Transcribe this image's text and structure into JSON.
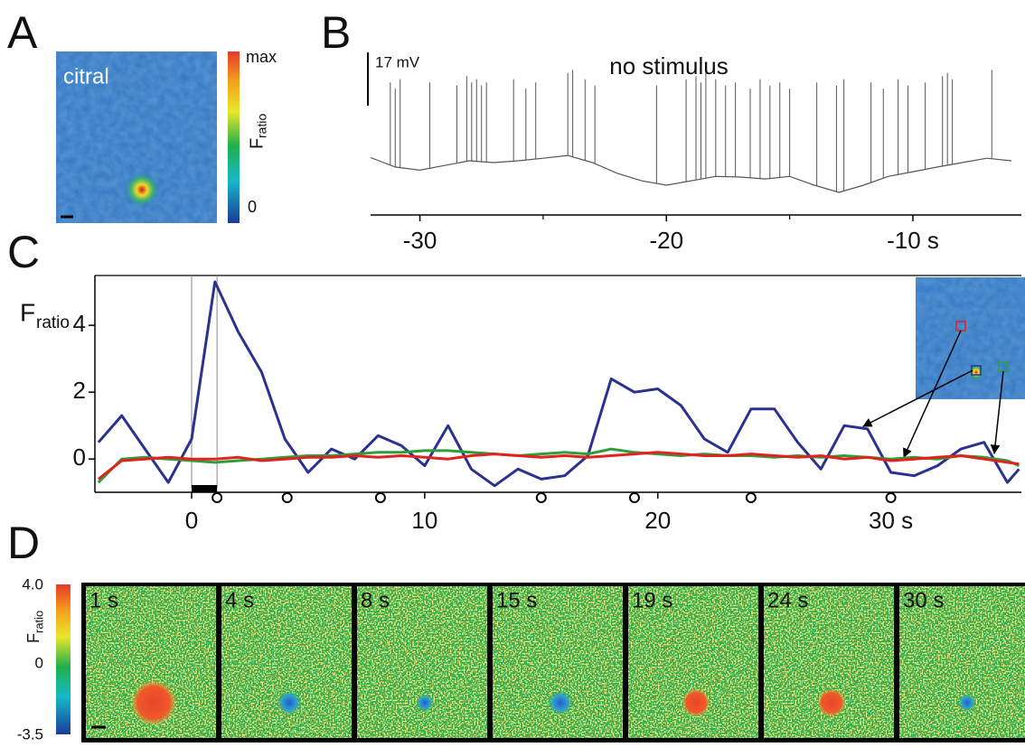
{
  "panel_labels": [
    "A",
    "B",
    "C",
    "D"
  ],
  "panel_a": {
    "image_label": "citral",
    "colorbar_top": "max",
    "colorbar_bottom": "0",
    "colorbar_title": "F",
    "colorbar_title_sub": "ratio"
  },
  "chart_data": [
    {
      "type": "trace",
      "title": "no stimulus",
      "scalebar": {
        "value": 17,
        "label": "17 mV"
      },
      "color": "#555555",
      "xlim": [
        -32,
        -5.6
      ],
      "xticks": [
        -30,
        -20,
        {
          "value": -10,
          "label": "-10 s"
        }
      ],
      "xminorticks": [
        -25,
        -15
      ],
      "ylim": [
        0,
        49
      ],
      "x": [
        -32,
        -31,
        -30,
        -29,
        -28,
        -27,
        -26,
        -25,
        -24,
        -23,
        -22,
        -21,
        -20,
        -19,
        -18,
        -17,
        -16,
        -15,
        -14,
        -13,
        -12,
        -11,
        -10,
        -9,
        -8,
        -7,
        -6
      ],
      "values": [
        16,
        13,
        12,
        13.5,
        15,
        14.4,
        15,
        15.8,
        16.7,
        14.4,
        11,
        8.6,
        7.2,
        8.6,
        10,
        9.8,
        9.2,
        10,
        7.2,
        4.9,
        7.2,
        10,
        11.5,
        13,
        14.4,
        15.8,
        15
      ],
      "spikes": {
        "x": [
          -31.2,
          -31.0,
          -30.8,
          -29.6,
          -28.5,
          -28.1,
          -27.9,
          -27.7,
          -27.5,
          -27.3,
          -26.2,
          -25.7,
          -25.3,
          -24.0,
          -23.8,
          -23.3,
          -22.9,
          -20.4,
          -19.2,
          -18.8,
          -18.6,
          -18.4,
          -18.0,
          -17.6,
          -17.2,
          -16.6,
          -16.2,
          -15.8,
          -15.4,
          -15.0,
          -13.9,
          -13.1,
          -12.8,
          -11.7,
          -11.2,
          -10.6,
          -10.2,
          -9.5,
          -8.8,
          -8.6,
          -8.4,
          -6.8
        ],
        "values": [
          40,
          38,
          41,
          40,
          39,
          42,
          40,
          41,
          39,
          40,
          41,
          38,
          40,
          43,
          44,
          41,
          39,
          39,
          41,
          42,
          40,
          43,
          41,
          39,
          40,
          38,
          41,
          39,
          40,
          38,
          40,
          39,
          41,
          40,
          38,
          41,
          39,
          40,
          42,
          43,
          41,
          44
        ]
      }
    },
    {
      "type": "line",
      "ylabel": "F",
      "ylabel_sub": "ratio",
      "xlim": [
        -4.15,
        35.6
      ],
      "xticks": [
        0,
        10,
        20,
        {
          "value": 30,
          "label": "30 s"
        }
      ],
      "ylim": [
        -0.86,
        5.49
      ],
      "yticks": [
        0,
        2,
        4
      ],
      "markers": [
        0,
        1.09
      ],
      "stimulus": [
        0,
        1.09
      ],
      "frame_times": [
        1.09,
        4.1,
        8.1,
        15,
        19,
        24,
        30
      ],
      "x": [
        -4,
        -3,
        -2,
        -1,
        0,
        1,
        2,
        3,
        4,
        5,
        6,
        7,
        8,
        9,
        10,
        11,
        12,
        13,
        14,
        15,
        16,
        17,
        18,
        19,
        20,
        21,
        22,
        23,
        24,
        25,
        26,
        27,
        28,
        29,
        30,
        31,
        32,
        33,
        34,
        35,
        35.5
      ],
      "series": [
        {
          "color": "#2b3190",
          "values": [
            0.5,
            1.3,
            0.3,
            -0.7,
            0.6,
            5.3,
            3.8,
            2.6,
            0.6,
            -0.4,
            0.3,
            0.0,
            0.7,
            0.4,
            -0.2,
            1.0,
            -0.3,
            -0.8,
            -0.3,
            -0.6,
            -0.5,
            0.1,
            2.4,
            2.0,
            2.1,
            1.6,
            0.6,
            0.2,
            1.5,
            1.5,
            0.5,
            -0.3,
            1.0,
            0.9,
            -0.4,
            -0.5,
            -0.2,
            0.3,
            0.5,
            -0.7,
            -0.3
          ]
        },
        {
          "color": "#2e9e3a",
          "values": [
            -0.7,
            0.0,
            0.05,
            0.0,
            -0.05,
            -0.1,
            -0.05,
            0.0,
            0.05,
            0.1,
            0.1,
            0.15,
            0.2,
            0.2,
            0.25,
            0.25,
            0.2,
            0.15,
            0.1,
            0.15,
            0.2,
            0.15,
            0.3,
            0.2,
            0.15,
            0.1,
            0.15,
            0.1,
            0.1,
            0.05,
            0.1,
            0.05,
            0.1,
            0.05,
            0.0,
            0.05,
            0.0,
            0.1,
            0.05,
            -0.05,
            -0.2
          ]
        },
        {
          "color": "#e0231e",
          "values": [
            -0.6,
            -0.05,
            0.0,
            0.05,
            0.0,
            0.0,
            0.05,
            -0.05,
            0.0,
            0.05,
            0.05,
            0.1,
            0.05,
            0.1,
            0.05,
            0.0,
            0.1,
            0.15,
            0.1,
            0.05,
            0.1,
            0.05,
            0.1,
            0.15,
            0.2,
            0.15,
            0.1,
            0.1,
            0.15,
            0.1,
            0.05,
            0.1,
            0.0,
            0.05,
            -0.05,
            0.0,
            0.05,
            0.1,
            0.0,
            -0.1,
            -0.15
          ]
        }
      ]
    }
  ],
  "panel_d": {
    "colorbar_ticks": [
      "4.0",
      "0",
      "-3.5"
    ],
    "colorbar_title": "F",
    "colorbar_title_sub": "ratio",
    "frames": [
      "1 s",
      "4 s",
      "8 s",
      "15 s",
      "19 s",
      "24 s",
      "30 s"
    ]
  }
}
